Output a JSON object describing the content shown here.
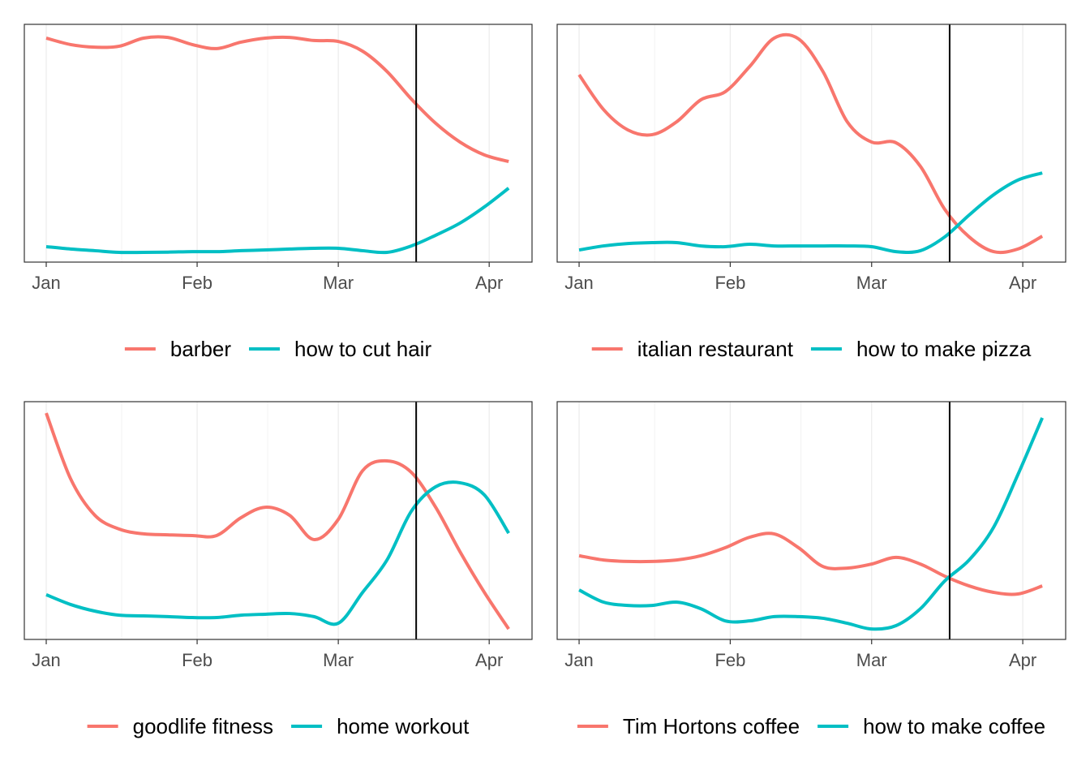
{
  "chart_data": [
    {
      "type": "line",
      "x": [
        0,
        5,
        10,
        15,
        20,
        25,
        30,
        35,
        40,
        45,
        50,
        55,
        60,
        65,
        70,
        75,
        80,
        85,
        90,
        95
      ],
      "xlim": [
        -4.5,
        99.8
      ],
      "ylim": [
        0,
        100
      ],
      "vline": 76,
      "grid": true,
      "xticks": [
        {
          "value": 0,
          "label": "Jan"
        },
        {
          "value": 31,
          "label": "Feb"
        },
        {
          "value": 60,
          "label": "Mar"
        },
        {
          "value": 91,
          "label": "Apr"
        }
      ],
      "series": [
        {
          "name": "barber",
          "color": "#F8766D",
          "values": [
            94.2,
            91.5,
            90.4,
            90.8,
            94.2,
            94.5,
            91.5,
            89.8,
            92.5,
            94.2,
            94.5,
            93.2,
            92.8,
            88.7,
            80.2,
            68.6,
            58.4,
            50.5,
            45.1,
            42.3
          ]
        },
        {
          "name": "how to cut hair",
          "color": "#00BFC4",
          "values": [
            6.5,
            5.5,
            4.8,
            4.1,
            4.1,
            4.2,
            4.4,
            4.4,
            4.8,
            5.1,
            5.5,
            5.8,
            5.8,
            4.8,
            4.1,
            6.8,
            11.3,
            16.4,
            23.2,
            31.1
          ]
        }
      ]
    },
    {
      "type": "line",
      "x": [
        0,
        5,
        10,
        15,
        20,
        25,
        30,
        35,
        40,
        45,
        50,
        55,
        60,
        65,
        70,
        75,
        80,
        85,
        90,
        95
      ],
      "xlim": [
        -4.5,
        99.8
      ],
      "ylim": [
        0,
        100
      ],
      "vline": 76,
      "grid": true,
      "xticks": [
        {
          "value": 0,
          "label": "Jan"
        },
        {
          "value": 31,
          "label": "Feb"
        },
        {
          "value": 60,
          "label": "Mar"
        },
        {
          "value": 91,
          "label": "Apr"
        }
      ],
      "series": [
        {
          "name": "italian restaurant",
          "color": "#F8766D",
          "values": [
            78.8,
            64.2,
            55.6,
            53.6,
            59.0,
            68.3,
            71.7,
            82.3,
            94.2,
            93.9,
            80.2,
            59.0,
            50.5,
            50.2,
            40.3,
            22.2,
            10.6,
            4.4,
            5.5,
            10.9
          ]
        },
        {
          "name": "how to make pizza",
          "color": "#00BFC4",
          "values": [
            5.1,
            6.8,
            7.8,
            8.2,
            8.2,
            6.8,
            6.5,
            7.5,
            6.8,
            6.8,
            6.8,
            6.8,
            6.5,
            4.4,
            4.8,
            10.6,
            19.8,
            28.3,
            34.5,
            37.5
          ]
        }
      ]
    },
    {
      "type": "line",
      "x": [
        0,
        5,
        10,
        15,
        20,
        25,
        30,
        35,
        40,
        45,
        50,
        55,
        60,
        65,
        70,
        75,
        80,
        85,
        90,
        95
      ],
      "xlim": [
        -4.5,
        99.8
      ],
      "ylim": [
        0,
        100
      ],
      "vline": 76,
      "grid": true,
      "xticks": [
        {
          "value": 0,
          "label": "Jan"
        },
        {
          "value": 31,
          "label": "Feb"
        },
        {
          "value": 60,
          "label": "Mar"
        },
        {
          "value": 91,
          "label": "Apr"
        }
      ],
      "series": [
        {
          "name": "goodlife fitness",
          "color": "#F8766D",
          "values": [
            95.2,
            67.6,
            52.2,
            46.4,
            44.4,
            44.0,
            43.7,
            43.7,
            51.2,
            55.6,
            52.2,
            42.0,
            50.5,
            71.0,
            75.1,
            70.3,
            55.6,
            36.9,
            19.8,
            4.4
          ]
        },
        {
          "name": "home workout",
          "color": "#00BFC4",
          "values": [
            18.8,
            14.7,
            11.9,
            10.2,
            9.9,
            9.6,
            9.2,
            9.2,
            10.2,
            10.6,
            10.9,
            9.6,
            6.8,
            19.8,
            33.4,
            53.9,
            64.2,
            65.9,
            60.8,
            44.7
          ]
        }
      ]
    },
    {
      "type": "line",
      "x": [
        0,
        5,
        10,
        15,
        20,
        25,
        30,
        35,
        40,
        45,
        50,
        55,
        60,
        65,
        70,
        75,
        80,
        85,
        90,
        95
      ],
      "xlim": [
        -4.5,
        99.8
      ],
      "ylim": [
        0,
        100
      ],
      "vline": 76,
      "grid": true,
      "xticks": [
        {
          "value": 0,
          "label": "Jan"
        },
        {
          "value": 31,
          "label": "Feb"
        },
        {
          "value": 60,
          "label": "Mar"
        },
        {
          "value": 91,
          "label": "Apr"
        }
      ],
      "series": [
        {
          "name": "Tim Hortons coffee",
          "color": "#F8766D",
          "values": [
            35.2,
            33.4,
            32.8,
            32.8,
            33.4,
            35.2,
            38.6,
            43.0,
            44.4,
            38.6,
            30.7,
            30.0,
            31.7,
            34.5,
            31.7,
            26.6,
            22.5,
            19.8,
            19.1,
            22.5
          ]
        },
        {
          "name": "how to make coffee",
          "color": "#00BFC4",
          "values": [
            20.8,
            15.7,
            14.3,
            14.3,
            15.7,
            12.9,
            7.8,
            7.8,
            9.6,
            9.6,
            8.9,
            6.8,
            4.4,
            5.8,
            12.9,
            24.6,
            33.4,
            47.1,
            69.3,
            93.2
          ]
        }
      ]
    }
  ]
}
